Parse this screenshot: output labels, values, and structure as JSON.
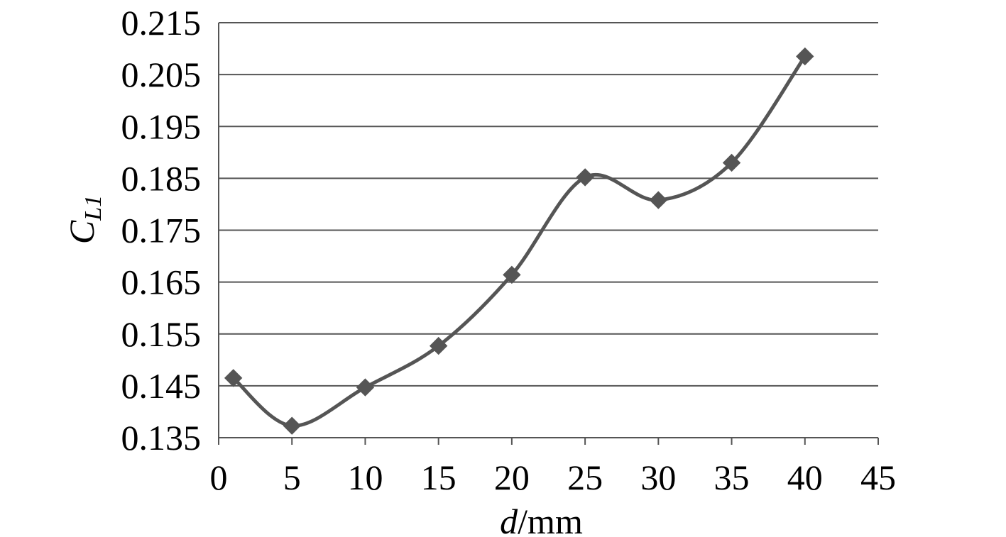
{
  "chart_data": {
    "type": "line",
    "title": "",
    "xlabel_italic": "d",
    "xlabel_unit": "/mm",
    "ylabel_main": "C",
    "ylabel_sub": "L1",
    "xlim": [
      0,
      45
    ],
    "ylim": [
      0.135,
      0.215
    ],
    "xticks": [
      "0",
      "5",
      "10",
      "15",
      "20",
      "25",
      "30",
      "35",
      "40",
      "45"
    ],
    "yticks": [
      "0.215",
      "0.205",
      "0.195",
      "0.185",
      "0.175",
      "0.165",
      "0.155",
      "0.145",
      "0.135"
    ],
    "grid": true,
    "legend": "none",
    "marker": "diamond",
    "smooth": true,
    "color": "#555555",
    "series": [
      {
        "x": [
          1,
          5,
          10,
          15,
          20,
          25,
          30,
          35,
          40
        ],
        "y": [
          0.1465,
          0.1373,
          0.1447,
          0.1527,
          0.1664,
          0.1852,
          0.1808,
          0.188,
          0.2085
        ]
      }
    ]
  }
}
